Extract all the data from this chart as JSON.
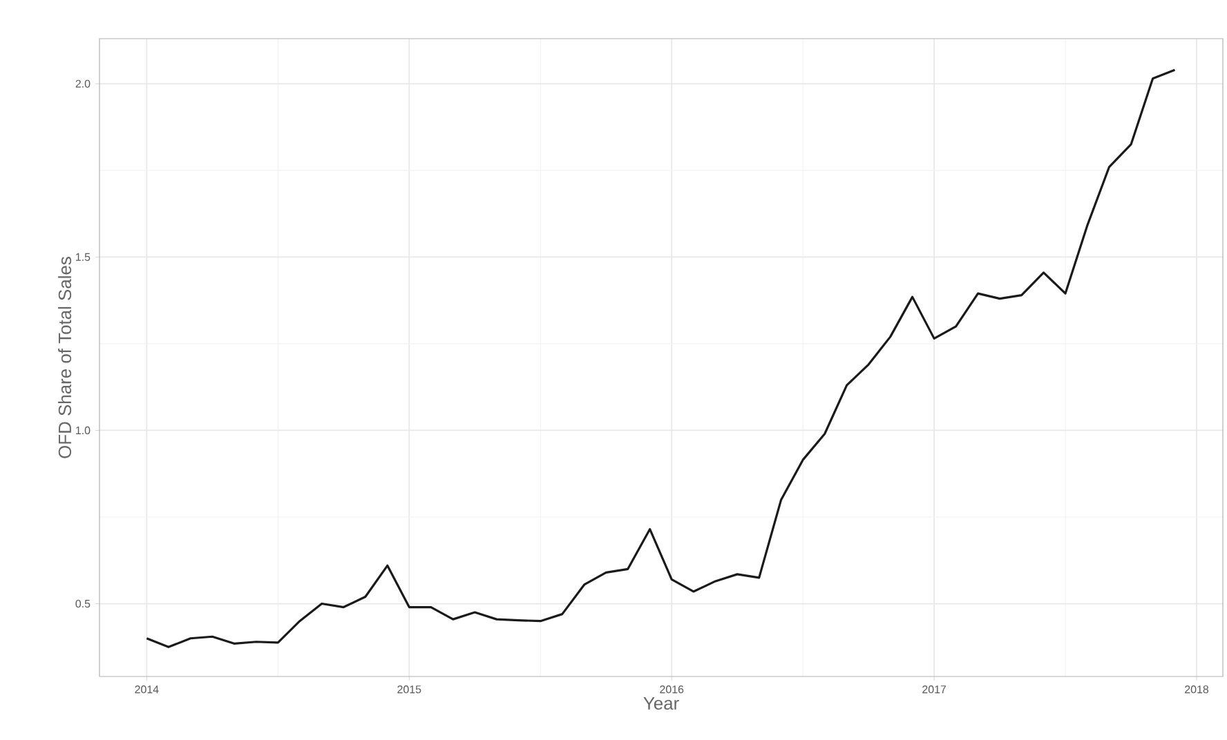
{
  "chart_data": {
    "type": "line",
    "xlabel": "Year",
    "ylabel": "OFD Share of Total Sales",
    "x": [
      2014.0,
      2014.083,
      2014.167,
      2014.25,
      2014.333,
      2014.417,
      2014.5,
      2014.583,
      2014.667,
      2014.75,
      2014.833,
      2014.917,
      2015.0,
      2015.083,
      2015.167,
      2015.25,
      2015.333,
      2015.417,
      2015.5,
      2015.583,
      2015.667,
      2015.75,
      2015.833,
      2015.917,
      2016.0,
      2016.083,
      2016.167,
      2016.25,
      2016.333,
      2016.417,
      2016.5,
      2016.583,
      2016.667,
      2016.75,
      2016.833,
      2016.917,
      2017.0,
      2017.083,
      2017.167,
      2017.25,
      2017.333,
      2017.417,
      2017.5,
      2017.583,
      2017.667,
      2017.75,
      2017.833,
      2017.917
    ],
    "series": [
      {
        "color": "#1a1a1a",
        "values": [
          0.4,
          0.375,
          0.4,
          0.405,
          0.385,
          0.39,
          0.388,
          0.45,
          0.5,
          0.49,
          0.52,
          0.61,
          0.49,
          0.49,
          0.455,
          0.475,
          0.455,
          0.452,
          0.45,
          0.47,
          0.555,
          0.59,
          0.6,
          0.715,
          0.57,
          0.535,
          0.565,
          0.585,
          0.575,
          0.8,
          0.915,
          0.99,
          1.13,
          1.19,
          1.27,
          1.385,
          1.265,
          1.3,
          1.395,
          1.38,
          1.39,
          1.455,
          1.395,
          1.59,
          1.76,
          1.825,
          2.015,
          2.04
        ]
      }
    ],
    "xlim": [
      2013.82,
      2018.1
    ],
    "ylim": [
      0.29,
      2.13
    ],
    "xticks": [
      2014,
      2015,
      2016,
      2017,
      2018
    ],
    "yticks": [
      {
        "value": 0.5,
        "label": "0.5"
      },
      {
        "value": 1.0,
        "label": "1.0"
      },
      {
        "value": 1.5,
        "label": "1.5"
      },
      {
        "value": 2.0,
        "label": "2.0"
      }
    ],
    "grid": true,
    "line_style": "solid"
  }
}
